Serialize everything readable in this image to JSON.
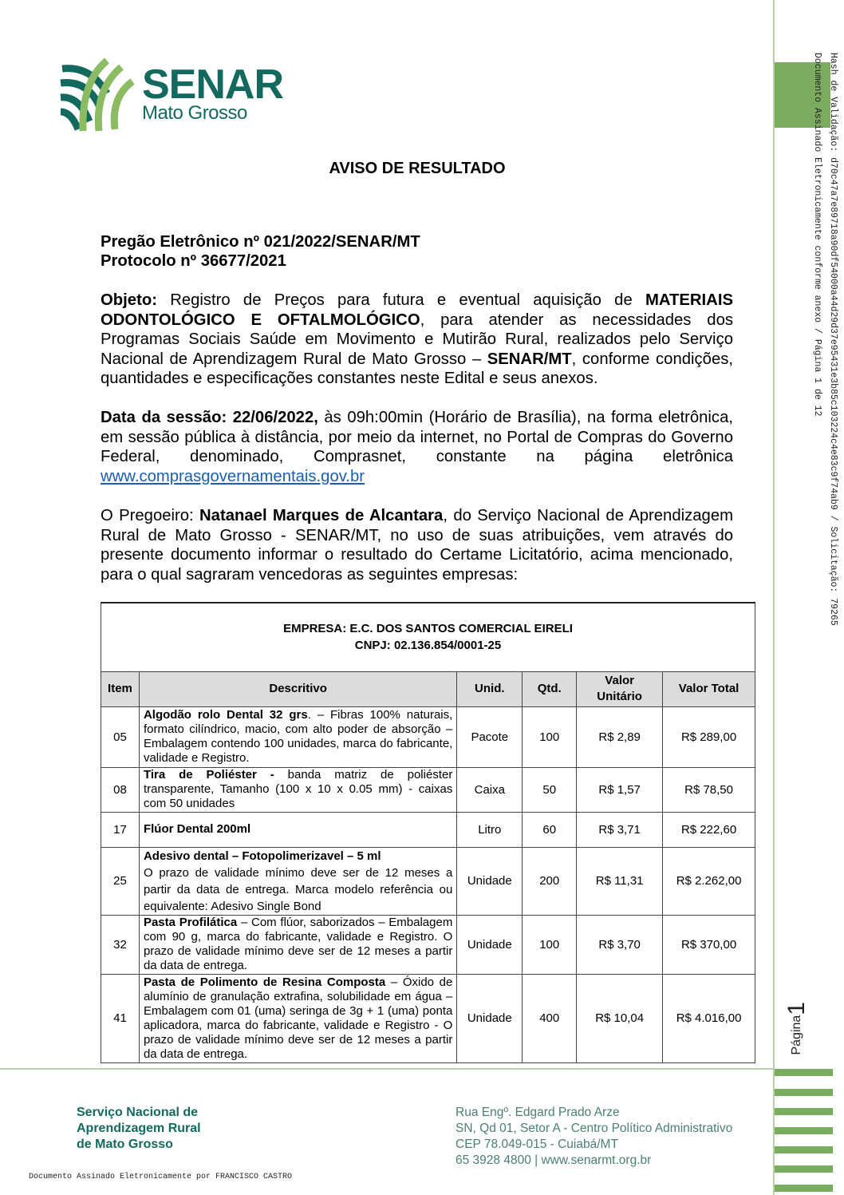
{
  "sidebar": {
    "hash_text": "Hash de Validação: d70c47a7e89718a90df54000a44d29d37e95431e3b85c103224c4e83c9f74ab9 / Solicitação: 79265",
    "signed_text": "Documento Assinado Eletronicamente conforme anexo / Página 1 de 12",
    "page_label": "Página",
    "page_number": "1",
    "accent_color": "#7aab5e"
  },
  "logo": {
    "name": "SENAR",
    "region": "Mato Grosso"
  },
  "title": "AVISO DE RESULTADO",
  "header": {
    "pregao": "Pregão Eletrônico nº 021/2022/SENAR/MT",
    "protocolo": "Protocolo nº 36677/2021"
  },
  "objeto": {
    "label": "Objeto:",
    "t1": " Registro de Preços para futura e eventual aquisição de ",
    "b1": "MATERIAIS ODONTOLÓGICO E OFTALMOLÓGICO",
    "t2": ", para atender as necessidades dos Programas Sociais Saúde em Movimento e Mutirão Rural, realizados pelo Serviço Nacional de Aprendizagem Rural de Mato Grosso – ",
    "b2": "SENAR/MT",
    "t3": ", conforme condições, quantidades e especificações constantes neste Edital e seus anexos."
  },
  "sessao": {
    "label": "Data da sessão: 22/06/2022,",
    "text": " às 09h:00min (Horário de Brasília), na forma eletrônica, em sessão pública à distância, por meio da internet, no Portal de Compras do Governo Federal, denominado, Comprasnet, constante na página eletrônica ",
    "link": "www.comprasgovernamentais.gov.br"
  },
  "pregoeiro": {
    "t1": "O Pregoeiro: ",
    "name": "Natanael Marques de Alcantara",
    "t2": ", do Serviço Nacional de Aprendizagem Rural de Mato Grosso - SENAR/MT, no uso de suas atribuições, vem através do presente documento informar o resultado do Certame Licitatório, acima mencionado, para o qual sagraram vencedoras as seguintes empresas:"
  },
  "table": {
    "company": "EMPRESA: E.C. DOS SANTOS COMERCIAL EIRELI",
    "cnpj": "CNPJ: 02.136.854/0001-25",
    "headers": [
      "Item",
      "Descritivo",
      "Unid.",
      "Qtd.",
      "Valor Unitário",
      "Valor Total"
    ],
    "rows": [
      {
        "item": "05",
        "name": "Algodão rolo Dental 32 grs",
        "desc": ". – Fibras 100% naturais, formato cilíndrico, macio, com alto poder de absorção – Embalagem contendo 100 unidades, marca do fabricante, validade e Registro.",
        "unit": "Pacote",
        "qty": "100",
        "price": "R$ 2,89",
        "total": "R$ 289,00"
      },
      {
        "item": "08",
        "name": "Tira de Poliéster -",
        "desc": " banda matriz de poliéster transparente, Tamanho (100 x 10 x 0.05 mm) - caixas com 50 unidades",
        "unit": "Caixa",
        "qty": "50",
        "price": "R$ 1,57",
        "total": "R$ 78,50"
      },
      {
        "item": "17",
        "name": "Flúor Dental 200ml",
        "desc": "",
        "unit": "Litro",
        "qty": "60",
        "price": "R$ 3,71",
        "total": "R$ 222,60"
      },
      {
        "item": "25",
        "name": "Adesivo dental – Fotopolimerizavel – 5 ml",
        "desc": "O prazo de validade mínimo deve ser de 12 meses a partir da data de entrega.  Marca modelo referência ou equivalente: Adesivo Single Bond",
        "unit": "Unidade",
        "qty": "200",
        "price": "R$ 11,31",
        "total": "R$ 2.262,00"
      },
      {
        "item": "32",
        "name": "Pasta Profilática",
        "desc": " – Com flúor, saborizados – Embalagem com 90 g, marca do fabricante, validade e Registro. O prazo de validade mínimo deve ser de 12 meses a partir da data de entrega.",
        "unit": "Unidade",
        "qty": "100",
        "price": "R$ 3,70",
        "total": "R$ 370,00"
      },
      {
        "item": "41",
        "name": "Pasta de Polimento de Resina Composta",
        "desc": " – Óxido de alumínio de granulação extrafina, solubilidade em água – Embalagem com 01 (uma) seringa de 3g + 1 (uma) ponta aplicadora, marca do fabricante, validade e Registro - O prazo de validade mínimo deve ser de 12 meses a partir da data de entrega.",
        "unit": "Unidade",
        "qty": "400",
        "price": "R$ 10,04",
        "total": "R$ 4.016,00"
      }
    ]
  },
  "footer": {
    "org": [
      "Serviço Nacional de",
      "Aprendizagem Rural",
      "de Mato Grosso"
    ],
    "address": [
      "Rua Engº. Edgard Prado Arze",
      "SN, Qd 01, Setor A - Centro Político Administrativo",
      "CEP 78.049-015 - Cuiabá/MT",
      "65 3928 4800 | www.senarmt.org.br"
    ],
    "signed_by": "Documento Assinado Eletronicamente por FRANCISCO CASTRO"
  }
}
